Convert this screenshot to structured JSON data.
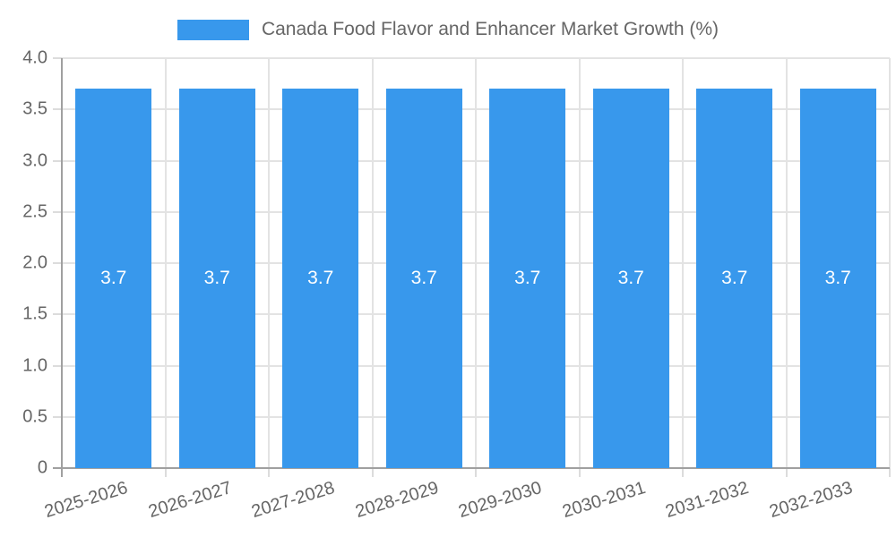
{
  "legend": {
    "label": "Canada Food Flavor and Enhancer Market Growth (%)"
  },
  "chart_data": {
    "type": "bar",
    "title": "Canada Food Flavor and Enhancer Market Growth (%)",
    "categories": [
      "2025-2026",
      "2026-2027",
      "2027-2028",
      "2028-2029",
      "2029-2030",
      "2030-2031",
      "2031-2032",
      "2032-2033"
    ],
    "values": [
      3.7,
      3.7,
      3.7,
      3.7,
      3.7,
      3.7,
      3.7,
      3.7
    ],
    "bar_labels": [
      "3.7",
      "3.7",
      "3.7",
      "3.7",
      "3.7",
      "3.7",
      "3.7",
      "3.7"
    ],
    "xlabel": "",
    "ylabel": "",
    "ylim": [
      0,
      4.0
    ],
    "yticks": [
      0,
      0.5,
      1.0,
      1.5,
      2.0,
      2.5,
      3.0,
      3.5,
      4.0
    ],
    "ytick_labels": [
      "0",
      "0.5",
      "1.0",
      "1.5",
      "2.0",
      "2.5",
      "3.0",
      "3.5",
      "4.0"
    ],
    "grid": true,
    "legend_position": "top",
    "colors": {
      "bar": "#3898EC",
      "grid": "#E3E3E3",
      "axis": "#A0A0A0",
      "tick": "#DCDCDC",
      "text": "#666666",
      "bar_label": "#FFFFFF"
    }
  }
}
